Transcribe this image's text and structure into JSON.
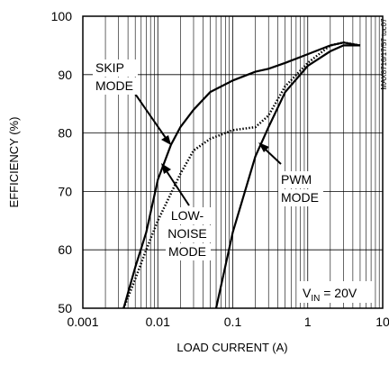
{
  "chart_data": {
    "type": "line",
    "x_label": "LOAD CURRENT (A)",
    "y_label": "EFFICIENCY (%)",
    "side_note": "MAX8716/17/57 toc07",
    "xscale": "log",
    "xlim": [
      0.001,
      10
    ],
    "xticks": [
      0.001,
      0.01,
      0.1,
      1,
      10
    ],
    "x_minor_ticks": [
      0.002,
      0.003,
      0.004,
      0.005,
      0.006,
      0.007,
      0.008,
      0.009,
      0.02,
      0.03,
      0.04,
      0.05,
      0.06,
      0.07,
      0.08,
      0.09,
      0.2,
      0.3,
      0.4,
      0.5,
      0.6,
      0.7,
      0.8,
      0.9,
      2,
      3,
      4,
      5,
      6,
      7,
      8,
      9
    ],
    "ylim": [
      50,
      100
    ],
    "yticks": [
      50,
      60,
      70,
      80,
      90,
      100
    ],
    "grid": true,
    "series": [
      {
        "name": "SKIP MODE",
        "color": "#000000",
        "style": "solid",
        "x": [
          0.0035,
          0.005,
          0.007,
          0.01,
          0.015,
          0.02,
          0.03,
          0.05,
          0.1,
          0.2,
          0.3,
          0.5,
          1,
          2,
          3,
          5
        ],
        "values": [
          50,
          57,
          63,
          72,
          78,
          81,
          84,
          87,
          89,
          90.5,
          91,
          92,
          93.5,
          95,
          95.5,
          95
        ]
      },
      {
        "name": "LOW-NOISE MODE",
        "color": "#000000",
        "style": "dotted",
        "x": [
          0.0035,
          0.005,
          0.007,
          0.01,
          0.02,
          0.03,
          0.05,
          0.1,
          0.2,
          0.3,
          0.5,
          1,
          2,
          3,
          5
        ],
        "values": [
          50,
          55,
          60,
          65,
          73,
          77,
          79,
          80.5,
          81,
          83,
          88,
          92,
          95,
          95.5,
          95
        ]
      },
      {
        "name": "PWM MODE",
        "color": "#000000",
        "style": "solid",
        "x": [
          0.06,
          0.1,
          0.2,
          0.3,
          0.5,
          1,
          2,
          3,
          5
        ],
        "values": [
          50,
          63,
          76,
          81,
          87,
          91.5,
          94,
          95,
          95
        ]
      }
    ],
    "annotations": [
      {
        "lines": [
          "SKIP",
          "MODE"
        ]
      },
      {
        "lines": [
          "LOW-",
          "NOISE",
          "MODE"
        ]
      },
      {
        "lines": [
          "PWM",
          "MODE"
        ]
      }
    ],
    "condition": {
      "main": "V",
      "sub": "IN",
      "rest": " = 20V"
    }
  }
}
